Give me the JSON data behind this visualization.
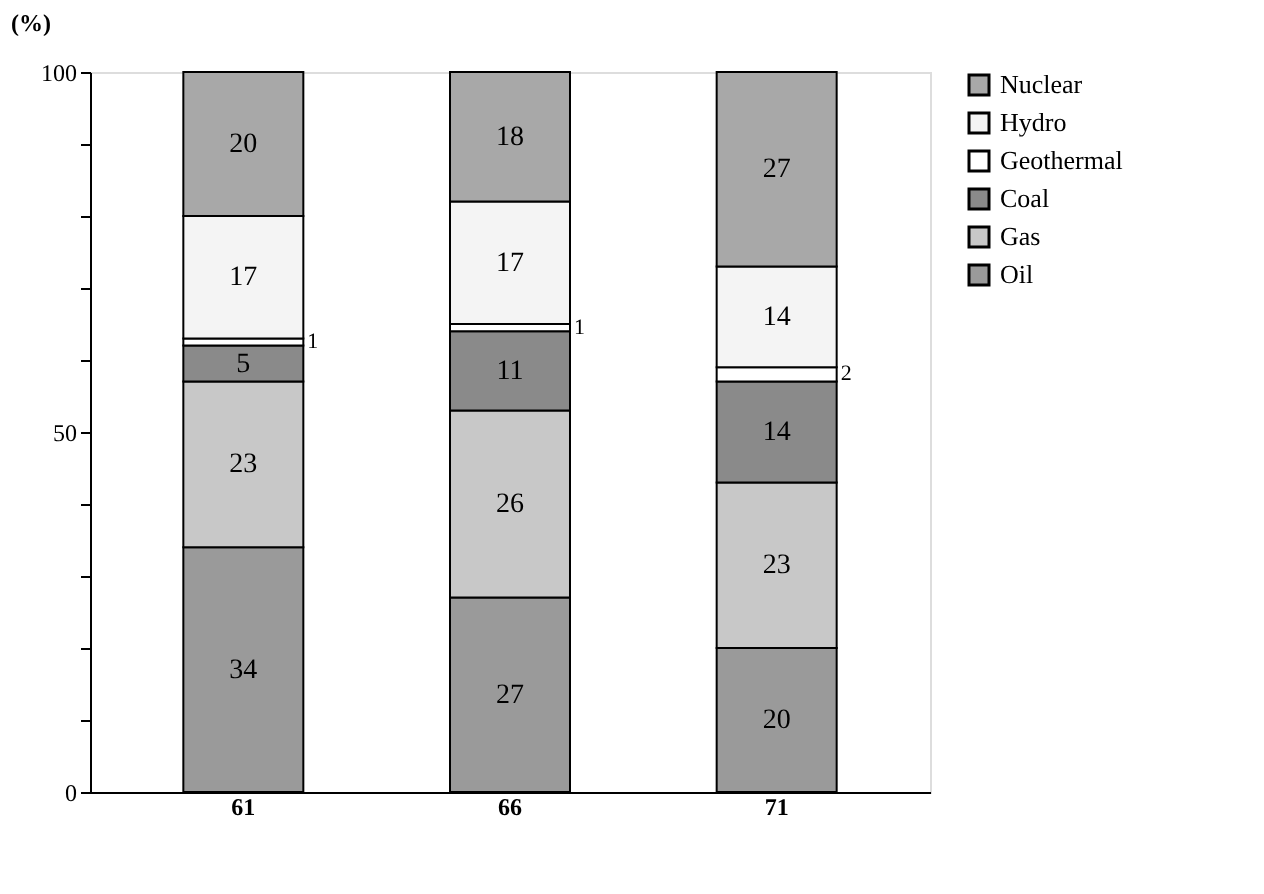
{
  "chart_data": {
    "type": "bar",
    "stacked": true,
    "ylabel": "(%)",
    "categories": [
      "61",
      "66",
      "71"
    ],
    "series": [
      {
        "name": "Oil",
        "color": "#9a9a9a",
        "values": [
          34,
          27,
          20
        ]
      },
      {
        "name": "Gas",
        "color": "#c8c8c8",
        "values": [
          23,
          26,
          23
        ]
      },
      {
        "name": "Coal",
        "color": "#8a8a8a",
        "values": [
          5,
          11,
          14
        ]
      },
      {
        "name": "Geothermal",
        "color": "#ffffff",
        "values": [
          1,
          1,
          2
        ]
      },
      {
        "name": "Hydro",
        "color": "#f4f4f4",
        "values": [
          17,
          17,
          14
        ]
      },
      {
        "name": "Nuclear",
        "color": "#a8a8a8",
        "values": [
          20,
          18,
          27
        ]
      }
    ],
    "ylim": [
      0,
      100
    ],
    "yticks": [
      0,
      {
        "value": 10,
        "label": null
      },
      {
        "value": 20,
        "label": null
      },
      {
        "value": 30,
        "label": null
      },
      {
        "value": 40,
        "label": null
      },
      50,
      {
        "value": 60,
        "label": null
      },
      {
        "value": 70,
        "label": null
      },
      {
        "value": 80,
        "label": null
      },
      {
        "value": 90,
        "label": null
      },
      100
    ],
    "data_labels": true,
    "grid": false,
    "legend": "right"
  }
}
